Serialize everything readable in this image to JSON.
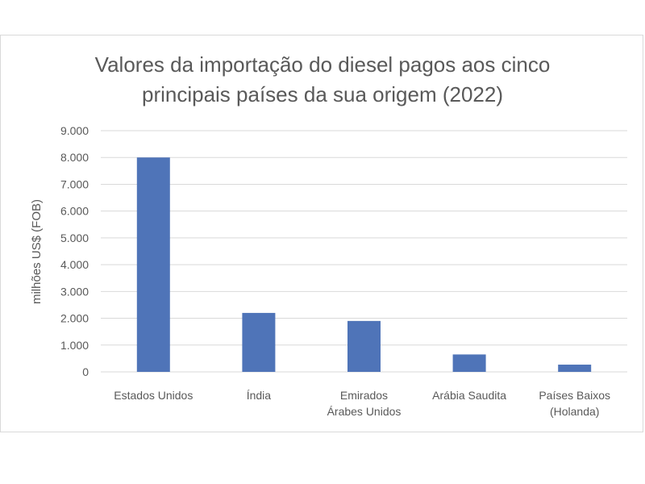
{
  "chart_data": {
    "type": "bar",
    "title_lines": [
      "Valores da importação do diesel pagos aos cinco",
      "principais países da sua origem (2022)"
    ],
    "ylabel": "milhões US$ (FOB)",
    "xlabel": "",
    "categories": [
      [
        "Estados Unidos"
      ],
      [
        "Índia"
      ],
      [
        "Emirados",
        "Árabes Unidos"
      ],
      [
        "Arábia Saudita"
      ],
      [
        "Países Baixos",
        "(Holanda)"
      ]
    ],
    "values": [
      8000,
      2200,
      1900,
      650,
      270
    ],
    "ylim": [
      0,
      9000
    ],
    "yticks": [
      0,
      1000,
      2000,
      3000,
      4000,
      5000,
      6000,
      7000,
      8000,
      9000
    ],
    "ytick_labels": [
      "0",
      "1.000",
      "2.000",
      "3.000",
      "4.000",
      "5.000",
      "6.000",
      "7.000",
      "8.000",
      "9.000"
    ],
    "grid": true,
    "legend": "none",
    "bar_color": "#4f74b8",
    "grid_color": "#d9d9d9"
  }
}
